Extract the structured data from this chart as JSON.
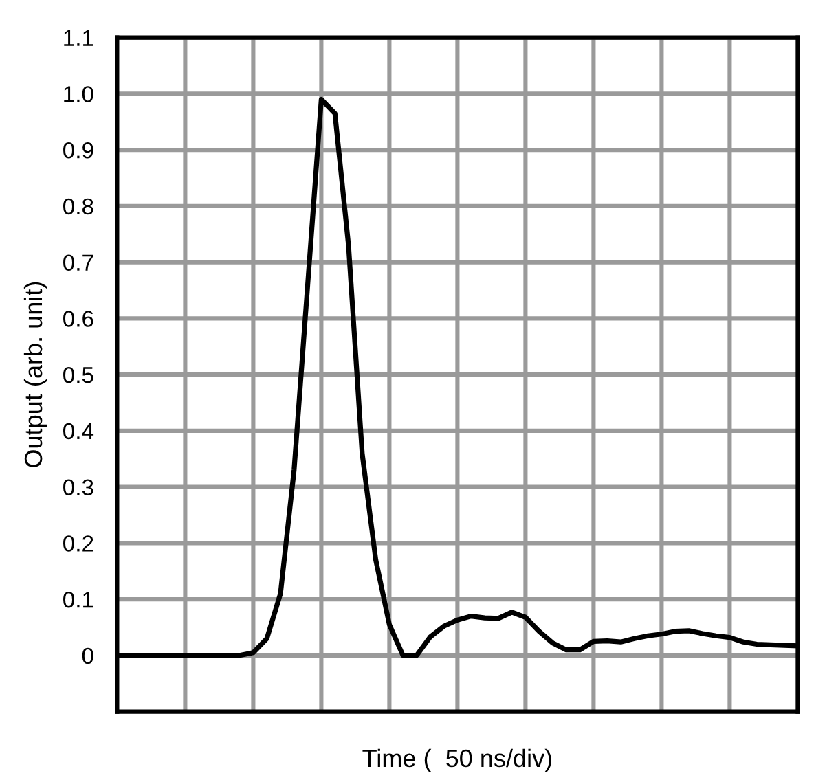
{
  "chart_data": {
    "type": "line",
    "xlabel": "Time (  50 ns/div)",
    "ylabel": "Output (arb. unit)",
    "categories": [
      null,
      null,
      null,
      null,
      null,
      null,
      null,
      null,
      null,
      null,
      null,
      null,
      null,
      null,
      null,
      null,
      null,
      null,
      null,
      null,
      null,
      null,
      null,
      null,
      null,
      null,
      null,
      null,
      null,
      null,
      null,
      null,
      null,
      null,
      null,
      null,
      null,
      null,
      null,
      null,
      null,
      null,
      null,
      null,
      null,
      null,
      null,
      null,
      null,
      null,
      null
    ],
    "series": [
      {
        "color": "#000000",
        "values": [
          0,
          0,
          0,
          0,
          0,
          0,
          0,
          0,
          0,
          0,
          0.005,
          0.03,
          0.11,
          0.33,
          0.66,
          0.99,
          0.965,
          0.73,
          0.36,
          0.17,
          0.055,
          0,
          0,
          0.033,
          0.052,
          0.063,
          0.07,
          0.067,
          0.066,
          0.077,
          0.068,
          0.043,
          0.022,
          0.01,
          0.01,
          0.025,
          0.026,
          0.024,
          0.03,
          0.035,
          0.038,
          0.043,
          0.044,
          0.039,
          0.035,
          0.032,
          0.024,
          0.02,
          0.019,
          0.018,
          0.017
        ]
      }
    ],
    "ylim": [
      -0.1,
      1.1
    ],
    "yticks": [
      0,
      0.1,
      0.2,
      0.3,
      0.4,
      0.5,
      0.6,
      0.7,
      0.8,
      0.9,
      {
        "value": 1,
        "label": "1.0"
      },
      1.1
    ],
    "grid": true,
    "marker": "none",
    "line_style": "solid",
    "legend": false
  }
}
